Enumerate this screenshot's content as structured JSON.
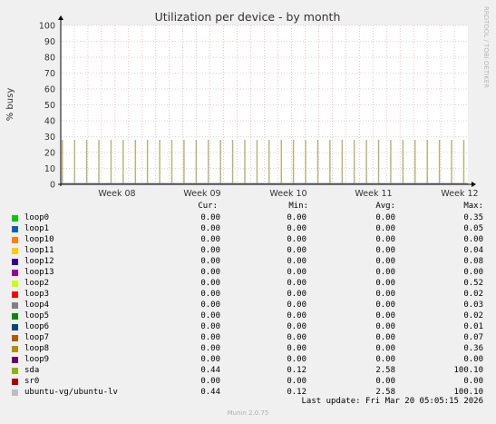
{
  "chart_data": {
    "type": "area",
    "title": "Utilization per device - by month",
    "ylabel": "% busy",
    "xlabel": "",
    "ylim": [
      0,
      100
    ],
    "y_ticks": [
      "0",
      "10",
      "20",
      "30",
      "40",
      "50",
      "60",
      "70",
      "80",
      "90",
      "100"
    ],
    "x_ticks": [
      "Week 08",
      "Week 09",
      "Week 10",
      "Week 11",
      "Week 12"
    ],
    "side_label": "RRDTOOL / TOBI OETIKER",
    "grid": true,
    "spike_value": 28,
    "spike_count": 34,
    "colors": {
      "background": "#f0f0f0",
      "canvas": "#ffffff",
      "grid_minor": "#e0a0a0",
      "grid_major": "#e0a0a0",
      "spike_fill": "#c8c8a0",
      "spike_line": "#a8a858",
      "baseline": "#9999aa"
    }
  },
  "legend": {
    "headers": {
      "cur": "Cur:",
      "min": "Min:",
      "avg": "Avg:",
      "max": "Max:"
    },
    "rows": [
      {
        "name": "loop0",
        "color": "#00cc00",
        "cur": "0.00",
        "min": "0.00",
        "avg": "0.00",
        "max": "0.35"
      },
      {
        "name": "loop1",
        "color": "#0066b3",
        "cur": "0.00",
        "min": "0.00",
        "avg": "0.00",
        "max": "0.05"
      },
      {
        "name": "loop10",
        "color": "#ff8000",
        "cur": "0.00",
        "min": "0.00",
        "avg": "0.00",
        "max": "0.00"
      },
      {
        "name": "loop11",
        "color": "#ffcc00",
        "cur": "0.00",
        "min": "0.00",
        "avg": "0.00",
        "max": "0.04"
      },
      {
        "name": "loop12",
        "color": "#330099",
        "cur": "0.00",
        "min": "0.00",
        "avg": "0.00",
        "max": "0.08"
      },
      {
        "name": "loop13",
        "color": "#990099",
        "cur": "0.00",
        "min": "0.00",
        "avg": "0.00",
        "max": "0.00"
      },
      {
        "name": "loop2",
        "color": "#ccff00",
        "cur": "0.00",
        "min": "0.00",
        "avg": "0.00",
        "max": "0.52"
      },
      {
        "name": "loop3",
        "color": "#ff0000",
        "cur": "0.00",
        "min": "0.00",
        "avg": "0.00",
        "max": "0.02"
      },
      {
        "name": "loop4",
        "color": "#808080",
        "cur": "0.00",
        "min": "0.00",
        "avg": "0.00",
        "max": "0.03"
      },
      {
        "name": "loop5",
        "color": "#008f00",
        "cur": "0.00",
        "min": "0.00",
        "avg": "0.00",
        "max": "0.02"
      },
      {
        "name": "loop6",
        "color": "#00487d",
        "cur": "0.00",
        "min": "0.00",
        "avg": "0.00",
        "max": "0.01"
      },
      {
        "name": "loop7",
        "color": "#b35a00",
        "cur": "0.00",
        "min": "0.00",
        "avg": "0.00",
        "max": "0.07"
      },
      {
        "name": "loop8",
        "color": "#b38f00",
        "cur": "0.00",
        "min": "0.00",
        "avg": "0.00",
        "max": "0.36"
      },
      {
        "name": "loop9",
        "color": "#6b006b",
        "cur": "0.00",
        "min": "0.00",
        "avg": "0.00",
        "max": "0.00"
      },
      {
        "name": "sda",
        "color": "#8fb300",
        "cur": "0.44",
        "min": "0.12",
        "avg": "2.58",
        "max": "100.10"
      },
      {
        "name": "sr0",
        "color": "#b30000",
        "cur": "0.00",
        "min": "0.00",
        "avg": "0.00",
        "max": "0.00"
      },
      {
        "name": "ubuntu-vg/ubuntu-lv",
        "color": "#bebebe",
        "cur": "0.44",
        "min": "0.12",
        "avg": "2.58",
        "max": "100.10"
      }
    ]
  },
  "last_update": "Last update: Fri Mar 20 05:05:15 2026",
  "footer": "Munin 2.0.75"
}
